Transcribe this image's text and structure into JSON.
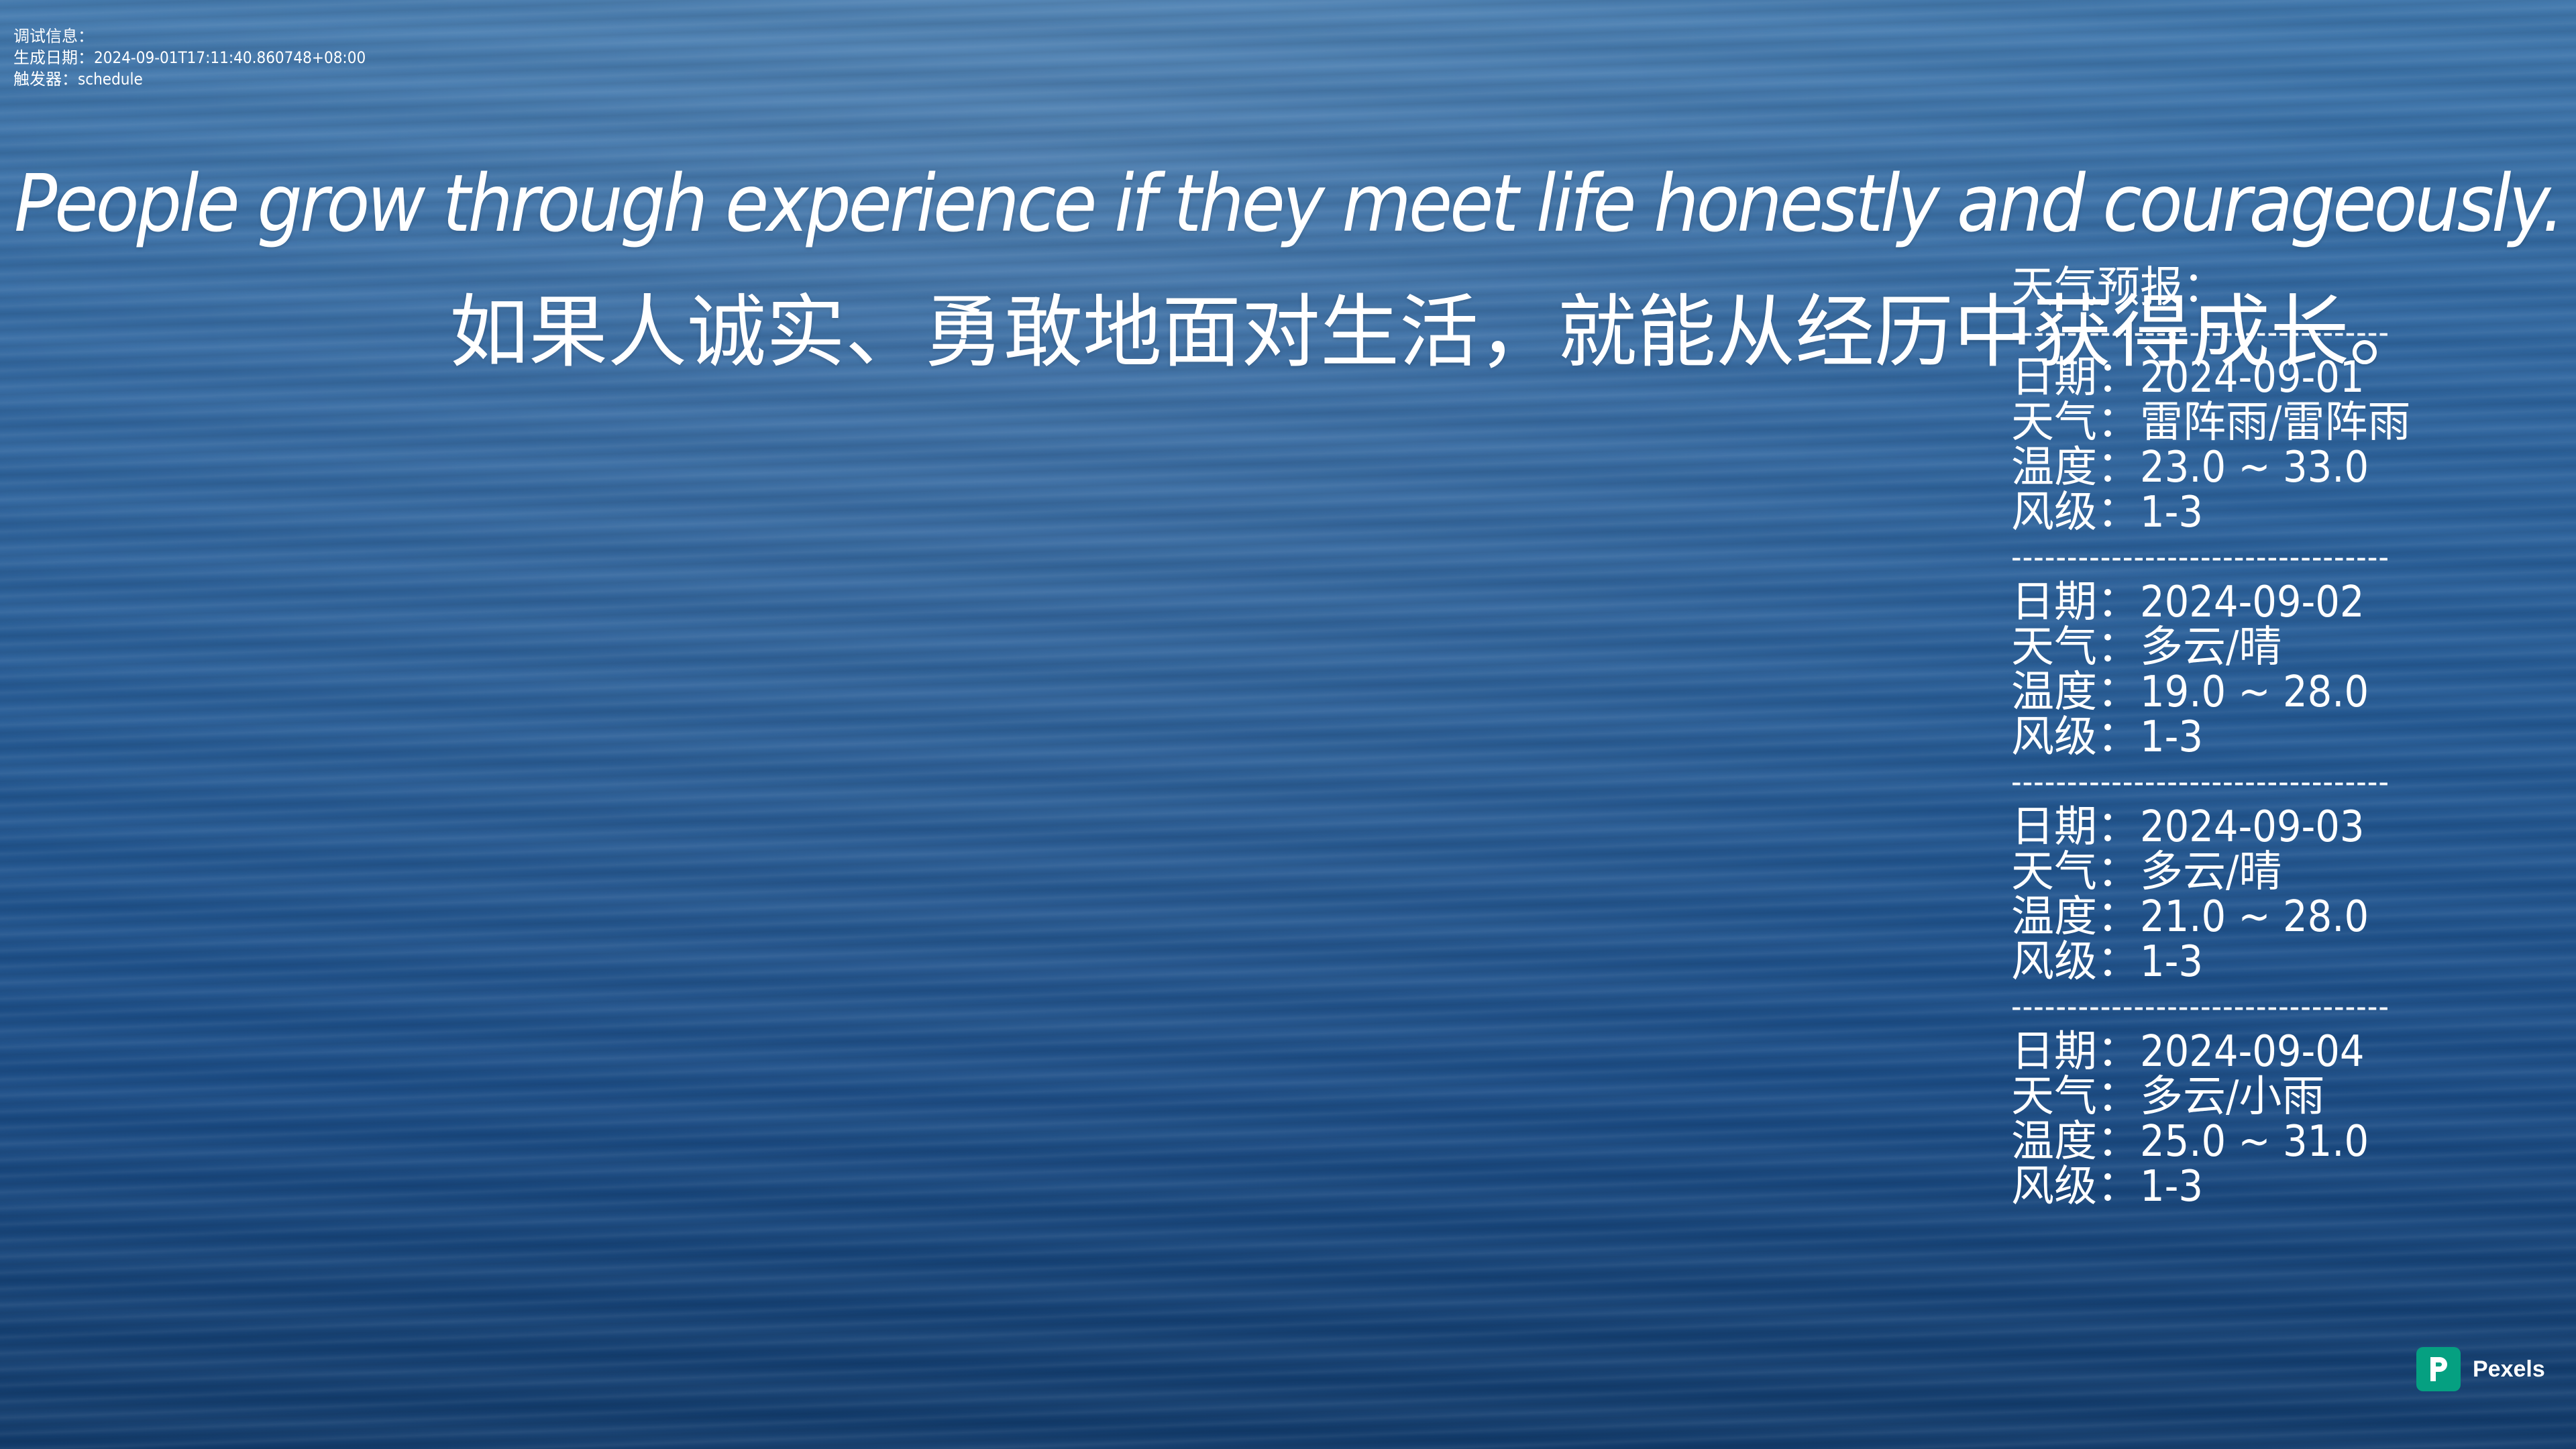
{
  "debug": {
    "title": "调试信息：",
    "generated": "生成日期：2024-09-01T17:11:40.860748+08:00",
    "trigger": "触发器：schedule"
  },
  "quote": {
    "en": "People grow through experience if they meet life honestly and courageously.",
    "zh": "如果人诚实、勇敢地面对生活，就能从经历中获得成长。"
  },
  "weather": {
    "title": "天气预报：",
    "separator": "----------------------------------",
    "days": [
      {
        "date": "日期：2024-09-01",
        "weather": "天气：雷阵雨/雷阵雨",
        "temp": "温度：23.0 ~ 33.0",
        "wind": "风级：1-3"
      },
      {
        "date": "日期：2024-09-02",
        "weather": "天气：多云/晴",
        "temp": "温度：19.0 ~ 28.0",
        "wind": "风级：1-3"
      },
      {
        "date": "日期：2024-09-03",
        "weather": "天气：多云/晴",
        "temp": "温度：21.0 ~ 28.0",
        "wind": "风级：1-3"
      },
      {
        "date": "日期：2024-09-04",
        "weather": "天气：多云/小雨",
        "temp": "温度：25.0 ~ 31.0",
        "wind": "风级：1-3"
      }
    ]
  },
  "watermark": {
    "label": "Pexels",
    "logo_icon": "pexels-logo-icon",
    "brand_color": "#05a081"
  }
}
